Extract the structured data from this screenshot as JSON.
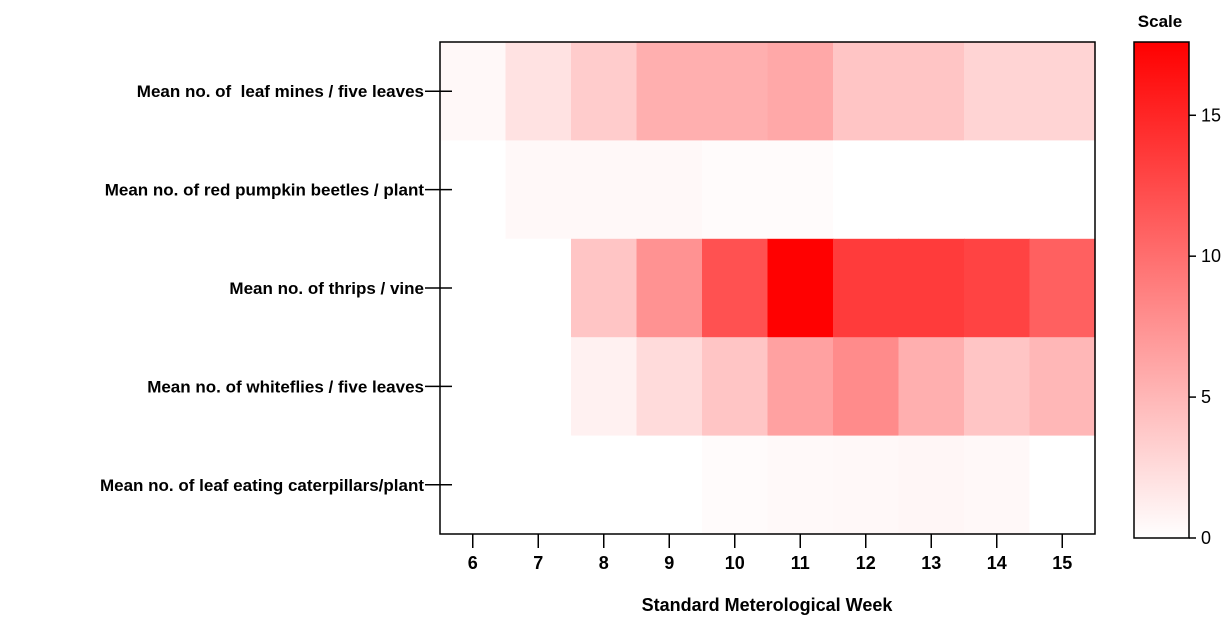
{
  "chart_data": {
    "type": "heatmap",
    "xlabel": "Standard Meterological Week",
    "x": [
      6,
      7,
      8,
      9,
      10,
      11,
      12,
      13,
      14,
      15
    ],
    "rows": [
      "Mean no. of  leaf mines / five leaves",
      "Mean no. of red pumpkin beetles / plant",
      "Mean no. of thrips / vine",
      "Mean no. of whiteflies / five leaves",
      "Mean no. of leaf eating caterpillars/plant"
    ],
    "values": [
      [
        0.5,
        2.0,
        3.5,
        5.5,
        5.5,
        6.0,
        4.0,
        4.0,
        3.0,
        3.0
      ],
      [
        0.0,
        0.5,
        0.5,
        0.5,
        0.3,
        0.3,
        0.0,
        0.0,
        0.0,
        0.0
      ],
      [
        0.0,
        0.0,
        4.0,
        7.5,
        12.0,
        17.5,
        13.5,
        13.5,
        13.0,
        11.0
      ],
      [
        0.0,
        0.0,
        1.0,
        2.5,
        4.0,
        6.5,
        8.0,
        5.5,
        4.0,
        5.0
      ],
      [
        0.0,
        0.0,
        0.0,
        0.0,
        0.3,
        0.4,
        0.5,
        0.6,
        0.5,
        0.0
      ]
    ],
    "scale": {
      "title": "Scale",
      "min": 0,
      "max": 17.6,
      "ticks": [
        0,
        5,
        10,
        15
      ],
      "low_color": "#ffffff",
      "high_color": "#ff0000"
    },
    "grid": false,
    "legend": "right"
  }
}
